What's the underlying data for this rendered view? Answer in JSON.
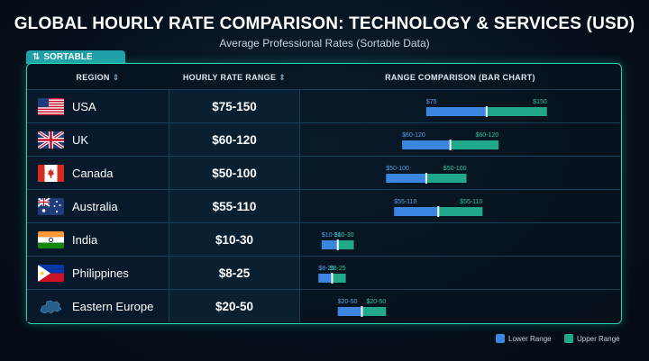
{
  "title": "GLOBAL HOURLY RATE COMPARISON: TECHNOLOGY & SERVICES (USD)",
  "subtitle": "Average Professional Rates (Sortable Data)",
  "tab": {
    "label": "SORTABLE",
    "icon": "sort-arrows-icon"
  },
  "headers": {
    "region": "REGION",
    "rate": "HOURLY RATE RANGE",
    "chart": "RANGE COMPARISON (BAR CHART)",
    "sort_icon": "sort-updown-icon"
  },
  "colors": {
    "lower": "#3a86e0",
    "upper": "#21a88a",
    "accent": "#27d3b3",
    "divider": "#ffffff"
  },
  "legend": {
    "lower": "Lower Range",
    "upper": "Upper Range"
  },
  "chart_data": {
    "type": "bar",
    "title": "RANGE COMPARISON (BAR CHART)",
    "categories": [
      "USA",
      "UK",
      "Canada",
      "Australia",
      "India",
      "Philippines",
      "Eastern Europe"
    ],
    "rate_labels": [
      "$75-150",
      "$60-120",
      "$50-100",
      "$55-110",
      "$10-30",
      "$8-25",
      "$20-50"
    ],
    "low": [
      75,
      60,
      50,
      55,
      10,
      8,
      20
    ],
    "high": [
      150,
      120,
      100,
      110,
      30,
      25,
      50
    ],
    "low_labels": [
      "$75",
      "$60-120",
      "$50-100",
      "$55-110",
      "$10-30",
      "$8-25",
      "$20-50"
    ],
    "high_labels": [
      "$150",
      "$60-120",
      "$50-100",
      "$55-110",
      "$10-30",
      "$8-25",
      "$20-50"
    ],
    "series": [
      {
        "name": "Lower Range"
      },
      {
        "name": "Upper Range"
      }
    ],
    "xlim": [
      0,
      160
    ],
    "grid": false,
    "legend_position": "bottom-right"
  },
  "rows": [
    {
      "region": "USA",
      "rate": "$75-150",
      "flag": "usa-flag-icon"
    },
    {
      "region": "UK",
      "rate": "$60-120",
      "flag": "uk-flag-icon"
    },
    {
      "region": "Canada",
      "rate": "$50-100",
      "flag": "canada-flag-icon"
    },
    {
      "region": "Australia",
      "rate": "$55-110",
      "flag": "australia-flag-icon"
    },
    {
      "region": "India",
      "rate": "$10-30",
      "flag": "india-flag-icon"
    },
    {
      "region": "Philippines",
      "rate": "$8-25",
      "flag": "philippines-flag-icon"
    },
    {
      "region": "Eastern Europe",
      "rate": "$20-50",
      "flag": "eastern-europe-map-icon"
    }
  ]
}
